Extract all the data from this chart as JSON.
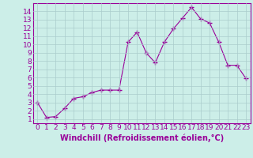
{
  "x": [
    0,
    1,
    2,
    3,
    4,
    5,
    6,
    7,
    8,
    9,
    10,
    11,
    12,
    13,
    14,
    15,
    16,
    17,
    18,
    19,
    20,
    21,
    22,
    23
  ],
  "y": [
    3.0,
    1.2,
    1.3,
    2.3,
    3.5,
    3.7,
    4.2,
    4.5,
    4.5,
    4.5,
    10.3,
    11.5,
    9.0,
    7.8,
    10.3,
    11.9,
    13.2,
    14.5,
    13.1,
    12.6,
    10.3,
    7.5,
    7.5,
    5.9
  ],
  "line_color": "#990099",
  "marker": "+",
  "marker_size": 4,
  "bg_color": "#cceee8",
  "grid_color": "#aacccc",
  "xlabel": "Windchill (Refroidissement éolien,°C)",
  "xlim": [
    -0.5,
    23.5
  ],
  "ylim": [
    0.5,
    15.0
  ],
  "yticks": [
    1,
    2,
    3,
    4,
    5,
    6,
    7,
    8,
    9,
    10,
    11,
    12,
    13,
    14
  ],
  "xticks": [
    0,
    1,
    2,
    3,
    4,
    5,
    6,
    7,
    8,
    9,
    10,
    11,
    12,
    13,
    14,
    15,
    16,
    17,
    18,
    19,
    20,
    21,
    22,
    23
  ],
  "font_size": 6.5,
  "xlabel_fontsize": 7,
  "linewidth": 0.8,
  "marker_edge_width": 1.0
}
